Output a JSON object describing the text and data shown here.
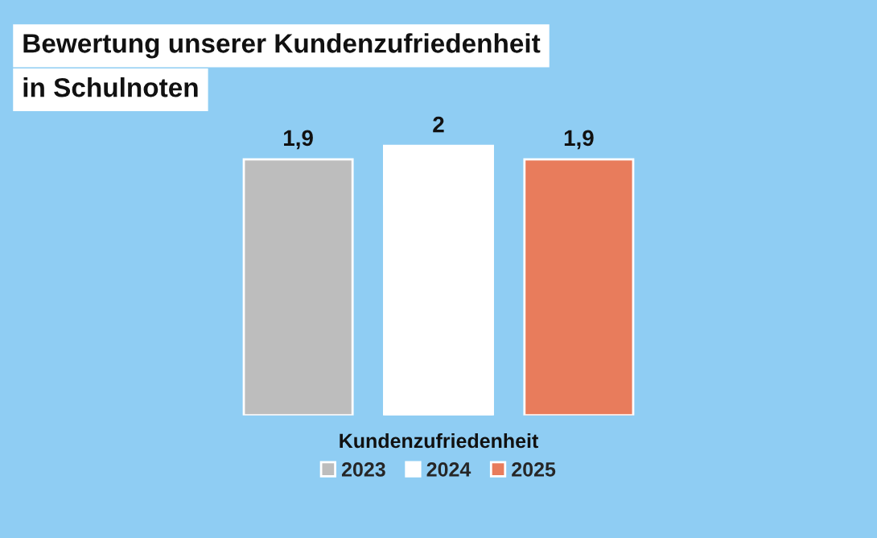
{
  "chart_data": {
    "type": "bar",
    "title": "Bewertung unserer Kundenzufriedenheit\nin Schulnoten",
    "xlabel": "Kundenzufriedenheit",
    "categories": [
      null
    ],
    "series": [
      {
        "name": "2023",
        "color": "#bdbdbd",
        "values": [
          1.9
        ],
        "value_labels": [
          "1,9"
        ]
      },
      {
        "name": "2024",
        "color": "#ffffff",
        "values": [
          2
        ],
        "value_labels": [
          "2"
        ]
      },
      {
        "name": "2025",
        "color": "#e87c5c",
        "values": [
          1.9
        ],
        "value_labels": [
          "1,9"
        ]
      }
    ],
    "tick_labels": false,
    "grid": false,
    "legend": "bottom"
  }
}
